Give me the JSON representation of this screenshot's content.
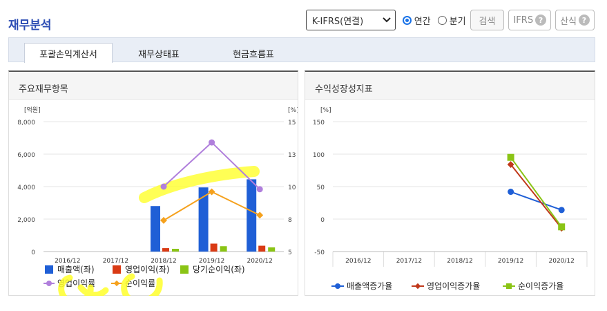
{
  "page": {
    "title": "재무분석"
  },
  "controls": {
    "select_value": "K-IFRS(연결)",
    "period_annual": "연간",
    "period_quarter": "분기",
    "search": "검색",
    "ifrs": "IFRS",
    "formula": "산식"
  },
  "tabs": [
    "포괄손익계산서",
    "재무상태표",
    "현금흐름표"
  ],
  "colors": {
    "accent": "#2a4bb3",
    "revenue": "#1f5fd6",
    "op_income": "#d93a14",
    "net_income": "#8ac415",
    "op_margin": "#b07fdc",
    "net_margin": "#f5a11d",
    "highlight": "#ffff2a"
  },
  "panels": {
    "left_title": "주요재무항목",
    "right_title": "수익성장성지표"
  },
  "chart_data": [
    {
      "type": "bar",
      "title": "주요재무항목",
      "categories": [
        "2016/12",
        "2017/12",
        "2018/12",
        "2019/12",
        "2020/12"
      ],
      "y_left_unit": "[억원]",
      "y_right_unit": "[%]",
      "y_left_ticks": [
        "8,000",
        "6,000",
        "4,000",
        "2,000",
        "0"
      ],
      "y_right_ticks": [
        "15",
        "13",
        "10",
        "8",
        "5"
      ],
      "ylim_left": [
        0,
        8000
      ],
      "ylim_right": [
        5,
        15
      ],
      "bar_series": [
        {
          "name": "매출액(좌)",
          "color": "#1f5fd6",
          "values": [
            null,
            null,
            2800,
            3950,
            4450
          ]
        },
        {
          "name": "영업이익(좌)",
          "color": "#d93a14",
          "values": [
            null,
            null,
            210,
            490,
            360
          ]
        },
        {
          "name": "당기순이익(좌)",
          "color": "#8ac415",
          "values": [
            null,
            null,
            170,
            330,
            260
          ]
        }
      ],
      "line_series": [
        {
          "name": "영업이익률",
          "color": "#b07fdc",
          "values": [
            null,
            null,
            10.0,
            13.4,
            9.8
          ]
        },
        {
          "name": "순이익률",
          "color": "#f5a11d",
          "values": [
            null,
            null,
            7.4,
            9.6,
            7.8
          ]
        }
      ]
    },
    {
      "type": "line",
      "title": "수익성장성지표",
      "categories": [
        "2016/12",
        "2017/12",
        "2018/12",
        "2019/12",
        "2020/12"
      ],
      "y_unit": "[%]",
      "y_ticks": [
        "150",
        "100",
        "50",
        "0",
        "-50"
      ],
      "ylim": [
        -50,
        150
      ],
      "series": [
        {
          "name": "매출액증가율",
          "color": "#1f5fd6",
          "marker": "circle",
          "values": [
            null,
            null,
            null,
            42,
            14
          ]
        },
        {
          "name": "영업이익증가율",
          "color": "#c0391b",
          "marker": "diamond",
          "values": [
            null,
            null,
            null,
            84,
            -14
          ]
        },
        {
          "name": "순이익증가율",
          "color": "#8ac415",
          "marker": "square",
          "values": [
            null,
            null,
            null,
            95,
            -12
          ]
        }
      ]
    }
  ]
}
